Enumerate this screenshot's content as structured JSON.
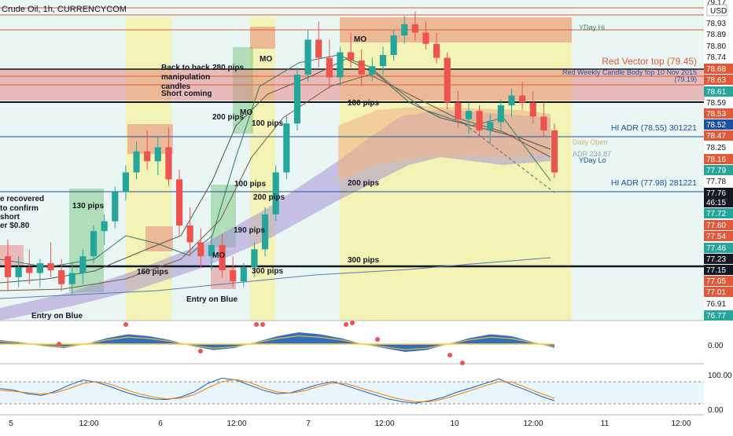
{
  "header": {
    "symbol": "Crude Oil, 1h, CURRENCYCOM",
    "currency": "USD"
  },
  "colors": {
    "up": "#26a69a",
    "down": "#ef5350",
    "zone_green": "#4caf50",
    "zone_red": "#e57373",
    "zone_yellow": "#f4f1a0",
    "bg_tint": "#d7efe9",
    "price_badge_green": "#26a69a",
    "price_badge_red": "#ef5350",
    "blue_line": "#1e4fa0",
    "red_line": "#e05a3a",
    "cloud_purple": "#9a7fd0",
    "cloud_orange": "#f2b184",
    "wave_blue": "#1e5fb4"
  },
  "chart_data": [
    {
      "type": "candlestick",
      "title": "Crude Oil, 1h, CURRENCYCOM",
      "x_ticks": [
        "5",
        "12:00",
        "6",
        "12:00",
        "7",
        "12:00",
        "10",
        "12:00",
        "11",
        "12:00"
      ],
      "y_range": [
        76.74,
        79.0
      ],
      "candles": [
        {
          "x": 0,
          "o": 77.2,
          "h": 77.32,
          "l": 76.95,
          "c": 77.05
        },
        {
          "x": 1,
          "o": 77.05,
          "h": 77.2,
          "l": 76.98,
          "c": 77.12
        },
        {
          "x": 2,
          "o": 77.12,
          "h": 77.25,
          "l": 77.0,
          "c": 77.08
        },
        {
          "x": 3,
          "o": 77.08,
          "h": 77.18,
          "l": 76.98,
          "c": 77.15
        },
        {
          "x": 4,
          "o": 77.15,
          "h": 77.3,
          "l": 77.05,
          "c": 77.1
        },
        {
          "x": 5,
          "o": 77.1,
          "h": 77.18,
          "l": 76.95,
          "c": 77.0
        },
        {
          "x": 6,
          "o": 77.0,
          "h": 77.15,
          "l": 76.92,
          "c": 77.08
        },
        {
          "x": 7,
          "o": 77.08,
          "h": 77.25,
          "l": 77.0,
          "c": 77.2
        },
        {
          "x": 8,
          "o": 77.2,
          "h": 77.42,
          "l": 77.15,
          "c": 77.38
        },
        {
          "x": 9,
          "o": 77.38,
          "h": 77.5,
          "l": 77.28,
          "c": 77.45
        },
        {
          "x": 10,
          "o": 77.45,
          "h": 77.7,
          "l": 77.4,
          "c": 77.66
        },
        {
          "x": 11,
          "o": 77.66,
          "h": 77.85,
          "l": 77.6,
          "c": 77.8
        },
        {
          "x": 12,
          "o": 77.8,
          "h": 78.02,
          "l": 77.75,
          "c": 77.95
        },
        {
          "x": 13,
          "o": 77.95,
          "h": 78.1,
          "l": 77.82,
          "c": 77.88
        },
        {
          "x": 14,
          "o": 77.88,
          "h": 78.05,
          "l": 77.78,
          "c": 77.98
        },
        {
          "x": 15,
          "o": 77.98,
          "h": 78.12,
          "l": 77.7,
          "c": 77.75
        },
        {
          "x": 16,
          "o": 77.75,
          "h": 77.82,
          "l": 77.35,
          "c": 77.42
        },
        {
          "x": 17,
          "o": 77.42,
          "h": 77.55,
          "l": 77.2,
          "c": 77.3
        },
        {
          "x": 18,
          "o": 77.3,
          "h": 77.4,
          "l": 77.12,
          "c": 77.2
        },
        {
          "x": 19,
          "o": 77.2,
          "h": 77.35,
          "l": 77.1,
          "c": 77.28
        },
        {
          "x": 20,
          "o": 77.28,
          "h": 77.36,
          "l": 77.05,
          "c": 77.1
        },
        {
          "x": 21,
          "o": 77.1,
          "h": 77.2,
          "l": 76.98,
          "c": 77.02
        },
        {
          "x": 22,
          "o": 77.02,
          "h": 77.15,
          "l": 76.98,
          "c": 77.12
        },
        {
          "x": 23,
          "o": 77.12,
          "h": 77.3,
          "l": 77.05,
          "c": 77.25
        },
        {
          "x": 24,
          "o": 77.25,
          "h": 77.55,
          "l": 77.2,
          "c": 77.5
        },
        {
          "x": 25,
          "o": 77.5,
          "h": 77.85,
          "l": 77.45,
          "c": 77.8
        },
        {
          "x": 26,
          "o": 77.8,
          "h": 78.2,
          "l": 77.75,
          "c": 78.15
        },
        {
          "x": 27,
          "o": 78.15,
          "h": 78.55,
          "l": 78.1,
          "c": 78.5
        },
        {
          "x": 28,
          "o": 78.5,
          "h": 78.82,
          "l": 78.45,
          "c": 78.75
        },
        {
          "x": 29,
          "o": 78.75,
          "h": 78.88,
          "l": 78.55,
          "c": 78.62
        },
        {
          "x": 30,
          "o": 78.62,
          "h": 78.75,
          "l": 78.4,
          "c": 78.48
        },
        {
          "x": 31,
          "o": 78.48,
          "h": 78.7,
          "l": 78.42,
          "c": 78.66
        },
        {
          "x": 32,
          "o": 78.66,
          "h": 78.8,
          "l": 78.55,
          "c": 78.6
        },
        {
          "x": 33,
          "o": 78.6,
          "h": 78.68,
          "l": 78.42,
          "c": 78.5
        },
        {
          "x": 34,
          "o": 78.5,
          "h": 78.62,
          "l": 78.45,
          "c": 78.56
        },
        {
          "x": 35,
          "o": 78.56,
          "h": 78.7,
          "l": 78.5,
          "c": 78.64
        },
        {
          "x": 36,
          "o": 78.64,
          "h": 78.82,
          "l": 78.6,
          "c": 78.78
        },
        {
          "x": 37,
          "o": 78.78,
          "h": 78.92,
          "l": 78.72,
          "c": 78.86
        },
        {
          "x": 38,
          "o": 78.86,
          "h": 78.95,
          "l": 78.74,
          "c": 78.8
        },
        {
          "x": 39,
          "o": 78.8,
          "h": 78.88,
          "l": 78.68,
          "c": 78.72
        },
        {
          "x": 40,
          "o": 78.72,
          "h": 78.8,
          "l": 78.58,
          "c": 78.62
        },
        {
          "x": 41,
          "o": 78.62,
          "h": 78.66,
          "l": 78.25,
          "c": 78.3
        },
        {
          "x": 42,
          "o": 78.3,
          "h": 78.38,
          "l": 78.12,
          "c": 78.18
        },
        {
          "x": 43,
          "o": 78.18,
          "h": 78.3,
          "l": 78.08,
          "c": 78.24
        },
        {
          "x": 44,
          "o": 78.24,
          "h": 78.28,
          "l": 78.05,
          "c": 78.1
        },
        {
          "x": 45,
          "o": 78.1,
          "h": 78.22,
          "l": 78.0,
          "c": 78.16
        },
        {
          "x": 46,
          "o": 78.16,
          "h": 78.32,
          "l": 78.1,
          "c": 78.28
        },
        {
          "x": 47,
          "o": 78.28,
          "h": 78.4,
          "l": 78.2,
          "c": 78.35
        },
        {
          "x": 48,
          "o": 78.35,
          "h": 78.45,
          "l": 78.25,
          "c": 78.3
        },
        {
          "x": 49,
          "o": 78.3,
          "h": 78.38,
          "l": 78.15,
          "c": 78.2
        },
        {
          "x": 50,
          "o": 78.2,
          "h": 78.3,
          "l": 78.05,
          "c": 78.1
        },
        {
          "x": 51,
          "o": 78.1,
          "h": 78.15,
          "l": 77.76,
          "c": 77.8
        }
      ],
      "horizontal_levels": [
        {
          "label": "Red Vector top (79.45)"
        },
        {
          "label": "Red Weekly Candle Body top 10 Nov 2015"
        },
        {
          "label": "(79.19)"
        },
        {
          "label": "HI ADR (78.55) 301221"
        },
        {
          "label": "HI ADR (77.98) 281221"
        },
        {
          "label": "Daily Open"
        },
        {
          "label": "ADR 234.87"
        },
        {
          "label": "YDay Lo"
        },
        {
          "label": "YDay Hi"
        }
      ],
      "annotations": [
        "280 pips",
        "Back to back",
        "manipulation",
        "candles",
        "Short coming",
        "MO",
        "MO",
        "MO",
        "MO",
        "200 pips",
        "100 pips",
        "100 pips",
        "100 pips",
        "200 pips",
        "200 pips",
        "190 pips",
        "300 pips",
        "300 pips",
        "130 pips",
        "160 pips",
        "Entry on Blue",
        "Entry on Blue",
        "e recovered",
        "to confirm",
        "short",
        "er $0.80"
      ],
      "price_scale": [
        "79.17",
        "78.93",
        "78.89",
        "78.80",
        "78.74",
        "78.68",
        "78.63",
        "78.61",
        "78.59",
        "78.53",
        "78.52",
        "78.47",
        "78.25",
        "78.16",
        "77.79",
        "77.78",
        "77.76",
        "46:15",
        "77.72",
        "77.60",
        "77.54",
        "77.46",
        "77.23",
        "77.15",
        "77.05",
        "77.01",
        "76.91",
        "76.77"
      ]
    },
    {
      "type": "line",
      "title": "",
      "ylabel": "",
      "y_ticks": [
        "0.00"
      ],
      "series": [
        {
          "values": [
            0.2,
            0.1,
            -0.1,
            -0.2,
            0.0,
            0.3,
            0.5,
            0.4,
            0.2,
            -0.1,
            -0.3,
            -0.2,
            0.1,
            0.4,
            0.6,
            0.5,
            0.3,
            0.0,
            -0.2,
            -0.4,
            -0.3,
            0.0,
            0.3,
            0.5,
            0.4,
            0.1,
            -0.2
          ]
        }
      ]
    },
    {
      "type": "line",
      "title": "",
      "y_ticks": [
        "100.00",
        "0.00"
      ],
      "ylim": [
        0,
        100
      ],
      "series": [
        {
          "values": [
            60,
            55,
            45,
            40,
            52,
            70,
            85,
            78,
            65,
            50,
            38,
            30,
            28,
            35,
            50,
            75,
            90,
            85,
            70,
            55,
            45,
            48,
            60,
            72,
            80,
            68,
            55,
            42,
            30,
            22,
            18,
            25,
            35,
            50,
            62,
            75,
            88,
            70,
            55,
            38,
            25
          ]
        },
        {
          "values": [
            55,
            52,
            48,
            44,
            48,
            60,
            75,
            80,
            72,
            58,
            45,
            36,
            30,
            32,
            42,
            62,
            80,
            86,
            78,
            62,
            50,
            47,
            54,
            66,
            76,
            74,
            62,
            50,
            38,
            28,
            22,
            22,
            30,
            42,
            55,
            68,
            80,
            78,
            62,
            46,
            32
          ]
        }
      ]
    }
  ]
}
